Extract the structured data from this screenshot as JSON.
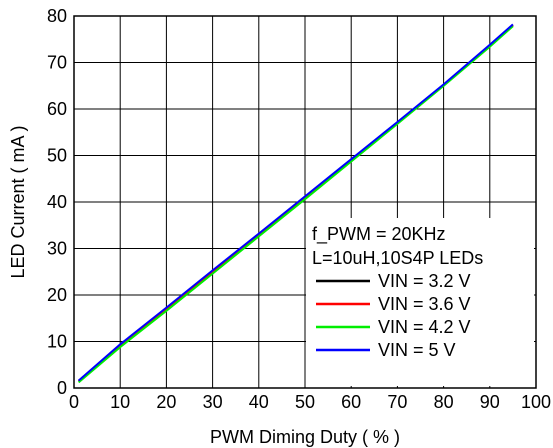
{
  "chart_data": {
    "type": "line",
    "title": "",
    "xlabel": "PWM Diming Duty ( % )",
    "ylabel": "LED Current ( mA )",
    "xlim": [
      0,
      100
    ],
    "ylim": [
      0,
      80
    ],
    "xticks": [
      0,
      10,
      20,
      30,
      40,
      50,
      60,
      70,
      80,
      90,
      100
    ],
    "yticks": [
      0,
      10,
      20,
      30,
      40,
      50,
      60,
      70,
      80
    ],
    "grid": true,
    "legend_position": "bottom-right",
    "legend_header": [
      "f_PWM = 20KHz",
      "L=10uH,10S4P LEDs"
    ],
    "series": [
      {
        "name": "VIN = 3.2 V",
        "color": "#000000",
        "x": [
          1,
          10,
          20,
          30,
          40,
          50,
          60,
          70,
          80,
          90,
          95
        ],
        "y": [
          1.5,
          9.2,
          17.1,
          25.1,
          33.0,
          41.0,
          49.0,
          57.0,
          65.1,
          73.6,
          78.0
        ]
      },
      {
        "name": "VIN = 3.6 V",
        "color": "#ff0000",
        "x": [
          1,
          10,
          20,
          30,
          40,
          50,
          60,
          70,
          80,
          90,
          95
        ],
        "y": [
          1.5,
          9.2,
          17.1,
          25.1,
          33.0,
          41.0,
          49.0,
          57.0,
          65.1,
          73.6,
          78.0
        ]
      },
      {
        "name": "VIN = 4.2 V",
        "color": "#00ee00",
        "x": [
          1,
          10,
          20,
          30,
          40,
          50,
          60,
          70,
          80,
          90,
          95
        ],
        "y": [
          1.2,
          8.8,
          16.6,
          24.6,
          32.6,
          40.6,
          48.7,
          56.8,
          65.0,
          73.4,
          77.8
        ]
      },
      {
        "name": "VIN = 5 V",
        "color": "#0000ff",
        "x": [
          1,
          10,
          20,
          30,
          40,
          50,
          60,
          70,
          80,
          90,
          95
        ],
        "y": [
          1.6,
          9.4,
          17.3,
          25.3,
          33.2,
          41.2,
          49.2,
          57.2,
          65.3,
          73.8,
          78.2
        ]
      }
    ]
  }
}
